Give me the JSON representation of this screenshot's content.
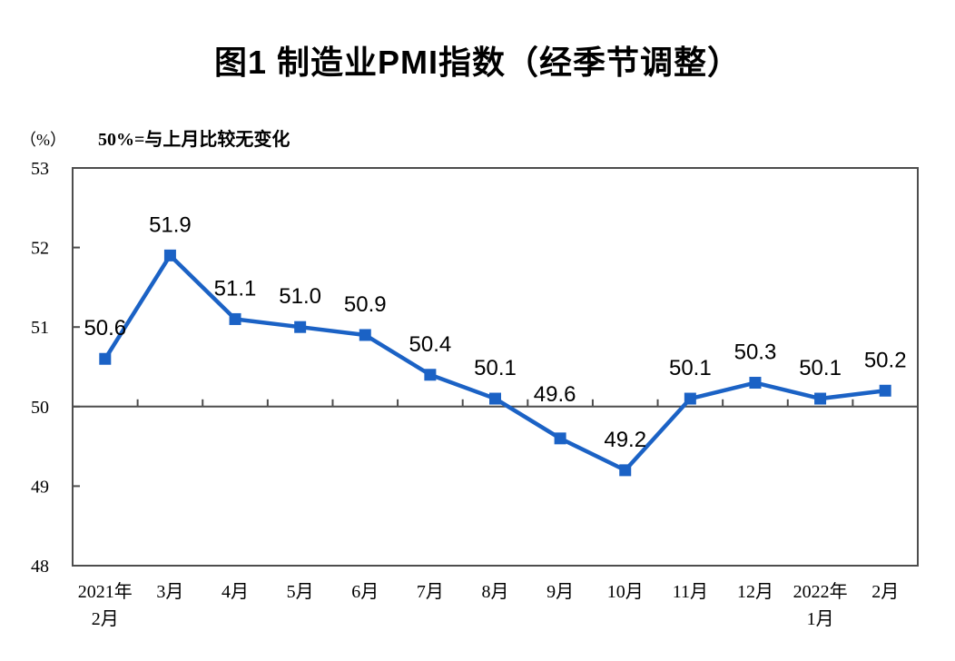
{
  "chart_data": {
    "type": "line",
    "title": "图1 制造业PMI指数（经季节调整）",
    "unit_label": "（%）",
    "note": "50%=与上月比较无变化",
    "categories": [
      [
        "2021年",
        "2月"
      ],
      [
        "3月"
      ],
      [
        "4月"
      ],
      [
        "5月"
      ],
      [
        "6月"
      ],
      [
        "7月"
      ],
      [
        "8月"
      ],
      [
        "9月"
      ],
      [
        "10月"
      ],
      [
        "11月"
      ],
      [
        "12月"
      ],
      [
        "2022年",
        "1月"
      ],
      [
        "2月"
      ]
    ],
    "values": [
      50.6,
      51.9,
      51.1,
      51.0,
      50.9,
      50.4,
      50.1,
      49.6,
      49.2,
      50.1,
      50.3,
      50.1,
      50.2
    ],
    "point_labels": [
      "50.6",
      "51.9",
      "51.1",
      "51.0",
      "50.9",
      "50.4",
      "50.1",
      "49.6",
      "49.2",
      "50.1",
      "50.3",
      "50.1",
      "50.2"
    ],
    "ylim": [
      48,
      53
    ],
    "yticks": [
      53,
      52,
      51,
      50,
      49,
      48
    ],
    "reference_line": 50,
    "marker": "square",
    "legend": "none",
    "grid": "off",
    "line_color": "#1B62C5",
    "axis_color": "#4D4D4D",
    "text_color": "#000000"
  }
}
